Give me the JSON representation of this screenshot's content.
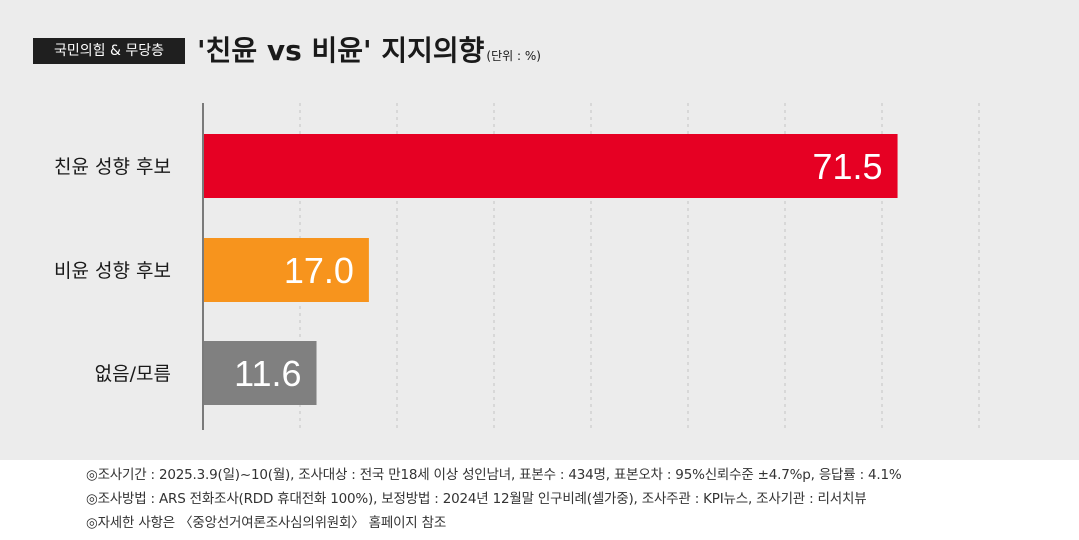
{
  "header": {
    "tag": "국민의힘 & 무당층",
    "title": "'친윤 vs 비윤' 지지의향",
    "unit": "(단위 : %)"
  },
  "chart_data": {
    "type": "bar",
    "orientation": "horizontal",
    "categories": [
      "친윤 성향 후보",
      "비윤 성향 후보",
      "없음/모름"
    ],
    "values": [
      71.5,
      17.0,
      11.6
    ],
    "value_labels": [
      "71.5",
      "17.0",
      "11.6"
    ],
    "colors": [
      "#e60023",
      "#f7941d",
      "#808080"
    ],
    "xlim": [
      0,
      80
    ],
    "grid": true
  },
  "footer": {
    "line1": "◎조사기간 : 2025.3.9(일)~10(월), 조사대상 : 전국 만18세 이상 성인남녀, 표본수 : 434명, 표본오차 : 95%신뢰수준 ±4.7%p, 응답률 : 4.1%",
    "line2": "◎조사방법 : ARS 전화조사(RDD 휴대전화 100%), 보정방법 : 2024년 12월말 인구비례(셀가중), 조사주관 : KPI뉴스, 조사기관 : 리서치뷰",
    "line3": "◎자세한 사항은 〈중앙선거여론조사심의위원회〉 홈페이지 참조"
  }
}
